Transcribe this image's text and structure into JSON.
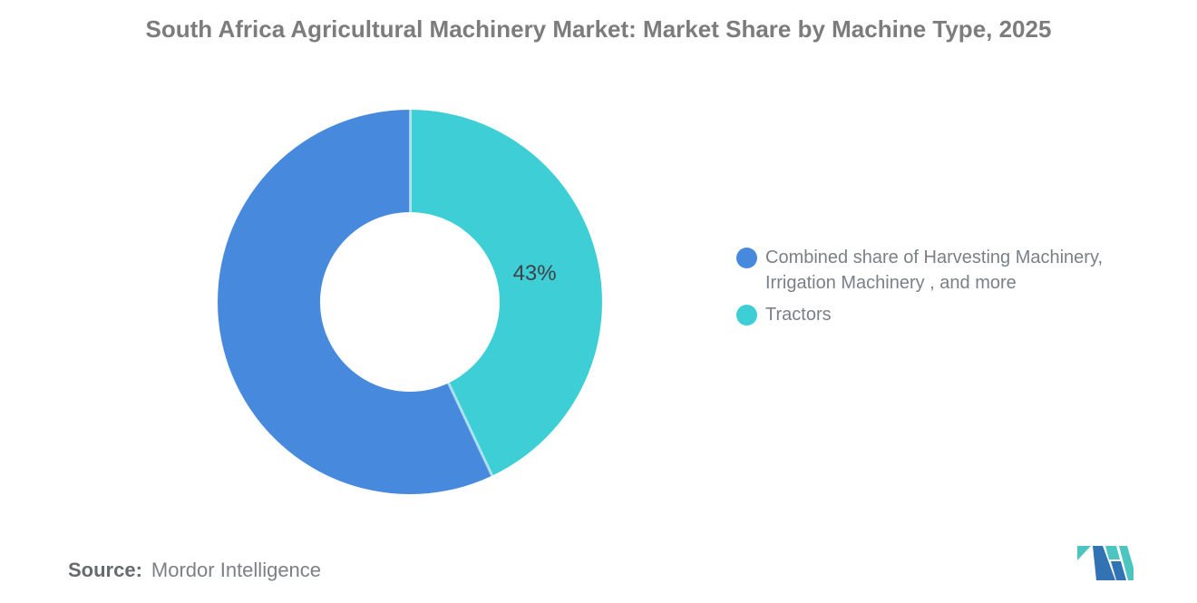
{
  "title": "South Africa Agricultural Machinery Market: Market Share by Machine Type, 2025",
  "source": {
    "label": "Source:",
    "value": "Mordor Intelligence"
  },
  "logo": {
    "name": "mordor-intelligence-logo",
    "blue": "#3273B4",
    "teal": "#4CC5C0"
  },
  "colors": {
    "combined_blue": "#4789DD",
    "tractors_teal": "#3ECED5",
    "title_gray": "#7C7C7C",
    "legend_text_gray": "#7B8087",
    "data_label_dark": "#3E4347"
  },
  "legend": {
    "position": "right",
    "items": [
      {
        "label": "Combined share of Harvesting Machinery, Irrigation Machinery , and more",
        "color": "#4789DD"
      },
      {
        "label": "Tractors",
        "color": "#3ECED5"
      }
    ]
  },
  "chart_data": {
    "type": "pie",
    "subtype": "donut",
    "title": "South Africa Agricultural Machinery Market: Market Share by Machine Type, 2025",
    "categories": [
      "Combined share of Harvesting Machinery, Irrigation Machinery , and more",
      "Tractors"
    ],
    "values": [
      57,
      43
    ],
    "slices_clockwise_from_top": [
      {
        "label": "Tractors",
        "value": 43,
        "color": "#3ECED5",
        "data_label": "43%"
      },
      {
        "label": "Combined share of Harvesting Machinery, Irrigation Machinery , and more",
        "value": 57,
        "color": "#4789DD",
        "data_label": null
      }
    ],
    "start_angle_deg": 0,
    "direction": "clockwise",
    "legend_position": "right",
    "grid": false
  }
}
